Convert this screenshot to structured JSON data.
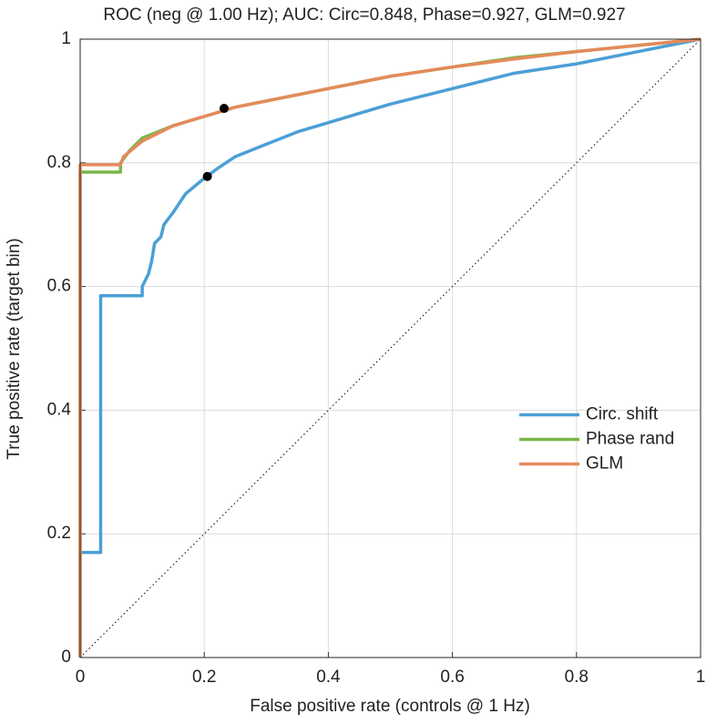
{
  "chart_data": {
    "type": "line",
    "title": "ROC (neg @ 1.00 Hz); AUC: Circ=0.848, Phase=0.927, GLM=0.927",
    "xlabel": "False positive rate (controls @ 1 Hz)",
    "ylabel": "True positive rate (target bin)",
    "xlim": [
      0,
      1
    ],
    "ylim": [
      0,
      1
    ],
    "xticks": [
      0,
      0.2,
      0.4,
      0.6,
      0.8,
      1
    ],
    "yticks": [
      0,
      0.2,
      0.4,
      0.6,
      0.8,
      1
    ],
    "grid": true,
    "legend": "east",
    "series": [
      {
        "name": "Circ. shift",
        "color": "#4c9fd6",
        "x": [
          0,
          0,
          0.033,
          0.033,
          0.1,
          0.1,
          0.11,
          0.115,
          0.12,
          0.13,
          0.135,
          0.15,
          0.17,
          0.2,
          0.22,
          0.25,
          0.3,
          0.35,
          0.4,
          0.45,
          0.5,
          0.6,
          0.7,
          0.8,
          0.9,
          1
        ],
        "values": [
          0,
          0.17,
          0.17,
          0.585,
          0.585,
          0.6,
          0.62,
          0.64,
          0.67,
          0.68,
          0.7,
          0.72,
          0.75,
          0.775,
          0.79,
          0.81,
          0.83,
          0.85,
          0.865,
          0.88,
          0.895,
          0.92,
          0.945,
          0.96,
          0.98,
          1
        ]
      },
      {
        "name": "Phase rand",
        "color": "#7ab648",
        "x": [
          0,
          0,
          0.065,
          0.065,
          0.08,
          0.1,
          0.15,
          0.2,
          0.25,
          0.3,
          0.4,
          0.5,
          0.6,
          0.7,
          0.8,
          0.9,
          1
        ],
        "values": [
          0,
          0.785,
          0.785,
          0.8,
          0.82,
          0.84,
          0.86,
          0.875,
          0.89,
          0.9,
          0.92,
          0.94,
          0.955,
          0.97,
          0.98,
          0.99,
          1
        ]
      },
      {
        "name": "GLM",
        "color": "#e58a5c",
        "x": [
          0,
          0,
          0.065,
          0.07,
          0.1,
          0.15,
          0.2,
          0.25,
          0.3,
          0.4,
          0.5,
          0.6,
          0.7,
          0.8,
          0.9,
          1
        ],
        "values": [
          0,
          0.797,
          0.797,
          0.81,
          0.835,
          0.86,
          0.875,
          0.89,
          0.9,
          0.92,
          0.94,
          0.955,
          0.968,
          0.98,
          0.99,
          1
        ]
      }
    ],
    "reference_line": {
      "x": [
        0,
        1
      ],
      "values": [
        0,
        1
      ],
      "color": "#000000"
    },
    "markers": {
      "x": [
        0.205,
        0.232
      ],
      "values": [
        0.778,
        0.888
      ],
      "color": "#000000"
    }
  }
}
